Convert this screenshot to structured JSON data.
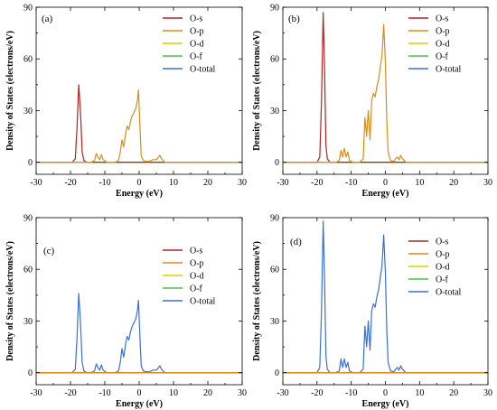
{
  "chart_data": [
    {
      "type": "line",
      "panel_label": "(a)",
      "xlabel": "Energy (eV)",
      "ylabel": "Density of States (electrons/eV)",
      "xlim": [
        -30,
        30
      ],
      "ylim": [
        -7,
        90
      ],
      "xticks": [
        -30,
        -20,
        -10,
        0,
        10,
        20,
        30
      ],
      "yticks": [
        0,
        30,
        60,
        90
      ],
      "grid": false,
      "legend_placement": "top-right",
      "series": [
        {
          "name": "O-s",
          "color": "#b22222",
          "x": [
            -30,
            -19.5,
            -18.6,
            -18.1,
            -17.6,
            -17.1,
            -16.6,
            -16.1,
            -15.3,
            30
          ],
          "y": [
            0,
            0,
            2,
            20,
            45,
            30,
            6,
            1,
            0,
            0
          ]
        },
        {
          "name": "O-p",
          "color": "#d98c1a",
          "x": [
            -30,
            -14.0,
            -13.0,
            -12.5,
            -12.0,
            -11.5,
            -11.0,
            -10.5,
            -9.5,
            -7.0,
            -6.0,
            -5.5,
            -5.0,
            -4.5,
            -4.0,
            -3.5,
            -3.0,
            -2.5,
            -2.0,
            -1.5,
            -1.0,
            -0.5,
            -0.2,
            0.2,
            0.6,
            1.2,
            2.0,
            3.0,
            4.0,
            5.0,
            5.5,
            6.0,
            6.5,
            7.5,
            30
          ],
          "y": [
            0,
            0,
            1,
            5,
            3,
            1.5,
            4.5,
            1.5,
            0,
            0,
            1,
            6,
            13,
            9,
            16,
            21,
            19,
            24,
            27,
            29,
            31,
            36,
            42,
            22,
            4,
            1,
            0.5,
            0.5,
            1.5,
            1.5,
            2.5,
            4,
            2,
            0,
            0
          ]
        },
        {
          "name": "O-d",
          "color": "#d4d400",
          "x": [
            -30,
            30
          ],
          "y": [
            0,
            0
          ]
        },
        {
          "name": "O-f",
          "color": "#4cc24c",
          "x": [
            -30,
            30
          ],
          "y": [
            0,
            0
          ]
        },
        {
          "name": "O-total",
          "color": "#3a6fd8",
          "x": [
            -30,
            30
          ],
          "y": [
            0,
            0
          ]
        }
      ]
    },
    {
      "type": "line",
      "panel_label": "(b)",
      "xlabel": "Energy (eV)",
      "ylabel": "Density of States (electrons/eV)",
      "xlim": [
        -30,
        30
      ],
      "ylim": [
        -7,
        90
      ],
      "xticks": [
        -30,
        -20,
        -10,
        0,
        10,
        20,
        30
      ],
      "yticks": [
        0,
        30,
        60,
        90
      ],
      "grid": false,
      "legend_placement": "top-right",
      "series": [
        {
          "name": "O-s",
          "color": "#b22222",
          "x": [
            -30,
            -20.0,
            -19.2,
            -18.7,
            -18.2,
            -17.8,
            -17.4,
            -17.0,
            -16.2,
            30
          ],
          "y": [
            0,
            0,
            3,
            35,
            87,
            55,
            10,
            2,
            0,
            0
          ]
        },
        {
          "name": "O-p",
          "color": "#d98c1a",
          "x": [
            -30,
            -14.5,
            -13.5,
            -13.0,
            -12.5,
            -12.0,
            -11.5,
            -11.0,
            -10.5,
            -9.5,
            -7.5,
            -6.5,
            -6.0,
            -5.5,
            -5.0,
            -4.5,
            -4.0,
            -3.5,
            -3.0,
            -2.5,
            -2.0,
            -1.5,
            -1.0,
            -0.5,
            0.0,
            0.4,
            0.8,
            1.5,
            2.5,
            3.0,
            3.5,
            4.0,
            4.5,
            5.0,
            6.0,
            30
          ],
          "y": [
            0,
            0,
            1,
            7,
            3,
            8,
            3,
            6,
            1,
            0,
            0,
            2,
            26,
            15,
            30,
            13,
            36,
            40,
            38,
            44,
            48,
            55,
            62,
            80,
            58,
            25,
            6,
            1,
            0.5,
            2,
            3,
            1.5,
            4,
            2,
            0,
            0
          ]
        },
        {
          "name": "O-d",
          "color": "#d4d400",
          "x": [
            -30,
            30
          ],
          "y": [
            0,
            0
          ]
        },
        {
          "name": "O-f",
          "color": "#4cc24c",
          "x": [
            -30,
            30
          ],
          "y": [
            0,
            0
          ]
        },
        {
          "name": "O-total",
          "color": "#3a6fd8",
          "x": [
            -30,
            30
          ],
          "y": [
            0,
            0
          ]
        }
      ]
    },
    {
      "type": "line",
      "panel_label": "(c)",
      "xlabel": "Energy (eV)",
      "ylabel": "Density of States (electrons/eV)",
      "xlim": [
        -30,
        30
      ],
      "ylim": [
        -7,
        90
      ],
      "xticks": [
        -30,
        -20,
        -10,
        0,
        10,
        20,
        30
      ],
      "yticks": [
        0,
        30,
        60,
        90
      ],
      "grid": false,
      "legend_placement": "top-right",
      "series": [
        {
          "name": "O-s",
          "color": "#b22222",
          "x": [
            -30,
            30
          ],
          "y": [
            0,
            0
          ]
        },
        {
          "name": "O-p",
          "color": "#d98c1a",
          "x": [
            -30,
            30
          ],
          "y": [
            0,
            0
          ]
        },
        {
          "name": "O-d",
          "color": "#d4d400",
          "x": [
            -30,
            30
          ],
          "y": [
            0,
            0
          ]
        },
        {
          "name": "O-f",
          "color": "#4cc24c",
          "x": [
            -30,
            30
          ],
          "y": [
            0,
            0
          ]
        },
        {
          "name": "O-total",
          "color": "#3a6fd8",
          "x": [
            -30,
            -19.5,
            -18.6,
            -18.1,
            -17.6,
            -17.1,
            -16.6,
            -16.1,
            -15.3,
            -14.0,
            -13.0,
            -12.5,
            -12.0,
            -11.5,
            -11.0,
            -10.5,
            -9.5,
            -7.0,
            -6.0,
            -5.5,
            -5.0,
            -4.5,
            -4.0,
            -3.5,
            -3.0,
            -2.5,
            -2.0,
            -1.5,
            -1.0,
            -0.5,
            -0.2,
            0.2,
            0.6,
            1.2,
            2.0,
            3.0,
            4.0,
            5.0,
            5.5,
            6.0,
            6.5,
            7.5,
            30
          ],
          "y": [
            0,
            0,
            2,
            20,
            46,
            30,
            6,
            1,
            0,
            0,
            1,
            5,
            3,
            1.5,
            4.5,
            1.5,
            0,
            0,
            1,
            6,
            14,
            9,
            16,
            21,
            19,
            24,
            27,
            29,
            31,
            36,
            42,
            22,
            4,
            1,
            0.5,
            0.5,
            1.5,
            1.5,
            2.5,
            4,
            2,
            0,
            0
          ]
        }
      ]
    },
    {
      "type": "line",
      "panel_label": "(d)",
      "xlabel": "Energy (eV)",
      "ylabel": "Density of States (electrons/eV)",
      "xlim": [
        -30,
        30
      ],
      "ylim": [
        -7,
        90
      ],
      "xticks": [
        -30,
        -20,
        -10,
        0,
        10,
        20,
        30
      ],
      "yticks": [
        0,
        30,
        60,
        90
      ],
      "grid": false,
      "legend_placement": "top-right",
      "series": [
        {
          "name": "O-s",
          "color": "#8b3a1a",
          "x": [
            -30,
            30
          ],
          "y": [
            0,
            0
          ]
        },
        {
          "name": "O-p",
          "color": "#d98c1a",
          "x": [
            -30,
            30
          ],
          "y": [
            0,
            0
          ]
        },
        {
          "name": "O-d",
          "color": "#d4d400",
          "x": [
            -30,
            30
          ],
          "y": [
            0,
            0
          ]
        },
        {
          "name": "O-f",
          "color": "#4cc24c",
          "x": [
            -30,
            30
          ],
          "y": [
            0,
            0
          ]
        },
        {
          "name": "O-total",
          "color": "#3a6fd8",
          "x": [
            -30,
            -20.0,
            -19.2,
            -18.7,
            -18.2,
            -17.8,
            -17.4,
            -17.0,
            -16.2,
            -14.5,
            -13.5,
            -13.0,
            -12.5,
            -12.0,
            -11.5,
            -11.0,
            -10.5,
            -9.5,
            -7.5,
            -6.5,
            -6.0,
            -5.5,
            -5.0,
            -4.5,
            -4.0,
            -3.5,
            -3.0,
            -2.5,
            -2.0,
            -1.5,
            -1.0,
            -0.5,
            0.0,
            0.4,
            0.8,
            1.5,
            2.5,
            3.0,
            3.5,
            4.0,
            4.5,
            5.0,
            6.0,
            30
          ],
          "y": [
            0,
            0,
            3,
            35,
            88,
            55,
            10,
            2,
            0,
            0,
            1,
            8,
            3,
            8,
            3,
            6,
            1,
            0,
            0,
            2,
            27,
            15,
            30,
            13,
            36,
            40,
            38,
            44,
            48,
            55,
            62,
            80,
            58,
            25,
            6,
            1,
            0.5,
            2,
            3,
            1.5,
            4,
            2,
            0,
            0
          ]
        }
      ]
    }
  ]
}
